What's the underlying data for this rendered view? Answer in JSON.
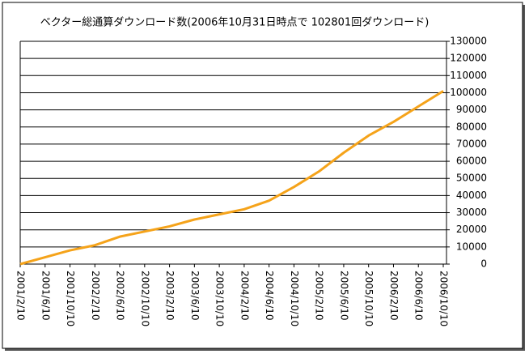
{
  "chart_data": {
    "type": "line",
    "title": "ベクター総通算ダウンロード数(2006年10月31日時点で 102801回ダウンロード)",
    "categories": [
      "2001/2/10",
      "2001/6/10",
      "2001/10/10",
      "2002/2/10",
      "2002/6/10",
      "2002/10/10",
      "2003/2/10",
      "2003/6/10",
      "2003/10/10",
      "2004/2/10",
      "2004/6/10",
      "2004/10/10",
      "2005/2/10",
      "2005/6/10",
      "2005/10/10",
      "2006/2/10",
      "2006/6/10",
      "2006/10/10"
    ],
    "series": [
      {
        "color": "#f5a31a",
        "values": [
          0,
          4000,
          8000,
          11000,
          16000,
          19000,
          22000,
          26000,
          29000,
          32000,
          37000,
          45000,
          54000,
          65000,
          75000,
          83000,
          92000,
          101000
        ]
      }
    ],
    "ylim": [
      0,
      130000
    ],
    "yticks": [
      0,
      10000,
      20000,
      30000,
      40000,
      50000,
      60000,
      70000,
      80000,
      90000,
      100000,
      110000,
      120000,
      130000
    ],
    "grid": true
  }
}
